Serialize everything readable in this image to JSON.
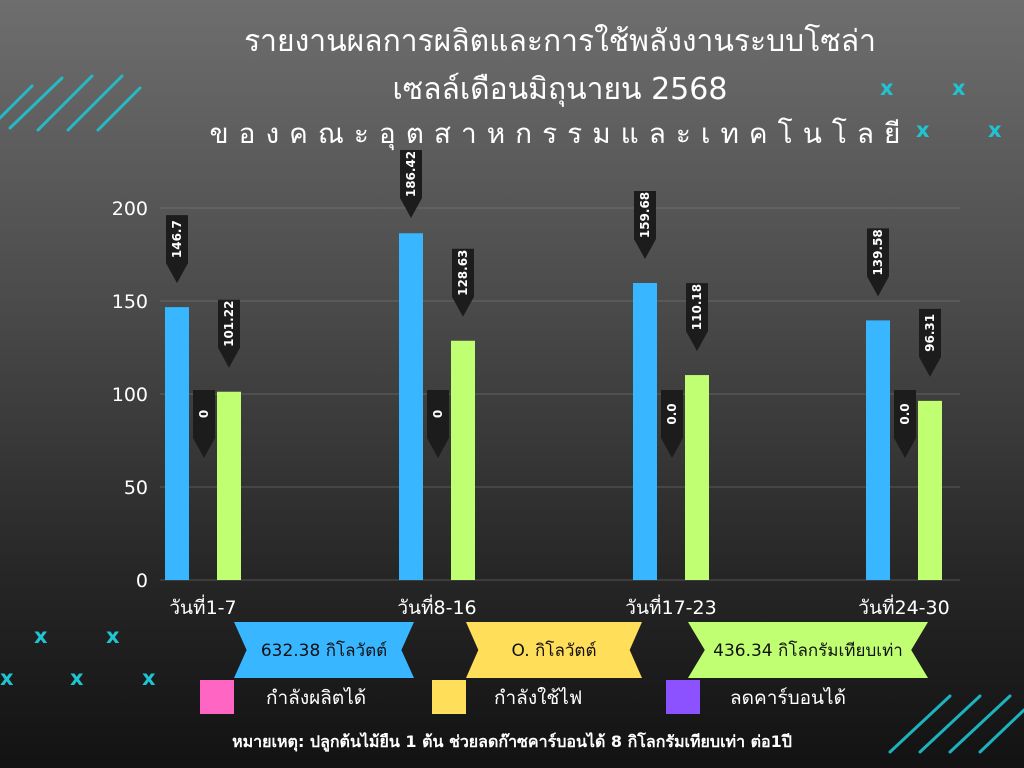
{
  "title_line1": "รายงานผลการผลิตและการใช้พลังงานระบบโซล่า",
  "title_line2": "เซลล์เดือนมิถุนายน 2568",
  "title_line3": "ของคณะอุตสาหกรรมและเทคโนโลยี",
  "chart_data": {
    "type": "bar",
    "categories": [
      "วันที่1-7",
      "วันที่8-16",
      "วันที่17-23",
      "วันที่24-30"
    ],
    "series": [
      {
        "values": [
          146.7,
          186.42,
          159.68,
          139.58
        ],
        "labels": [
          "146.7",
          "186.42",
          "159.68",
          "139.58"
        ],
        "color": "#38b6ff"
      },
      {
        "values": [
          0,
          0,
          0,
          0
        ],
        "labels": [
          "0",
          "0",
          "0.0",
          "0.0"
        ],
        "color": "#a855f7"
      },
      {
        "values": [
          101.22,
          128.63,
          110.18,
          96.31
        ],
        "labels": [
          "101.22",
          "128.63",
          "110.18",
          "96.31"
        ],
        "color": "#c1ff72"
      }
    ],
    "yticks": [
      "0",
      "50",
      "100",
      "150",
      "200"
    ],
    "ylim": [
      0,
      200
    ]
  },
  "banners": [
    {
      "text": "632.38 กิโลวัตต์",
      "color": "#38b6ff"
    },
    {
      "text": "O. กิโลวัตต์",
      "color": "#ffde59"
    },
    {
      "text": "436.34 กิโลกรัมเทียบเท่า",
      "color": "#c1ff72"
    }
  ],
  "legend": [
    {
      "label": "กำลังผลิตได้",
      "color": "#ff66c4"
    },
    {
      "label": "กำลังใช้ไฟ",
      "color": "#ffde59"
    },
    {
      "label": "ลดคาร์บอนได้",
      "color": "#8c52ff"
    }
  ],
  "decor": {
    "x_mark": "x",
    "accent": "#1fc3d1"
  },
  "footnote": "หมายเหตุ: ปลูกต้นไม้ยืน 1 ต้น ช่วยลดก๊าซคาร์บอนได้ 8 กิโลกรัมเทียบเท่า ต่อ1ปี"
}
